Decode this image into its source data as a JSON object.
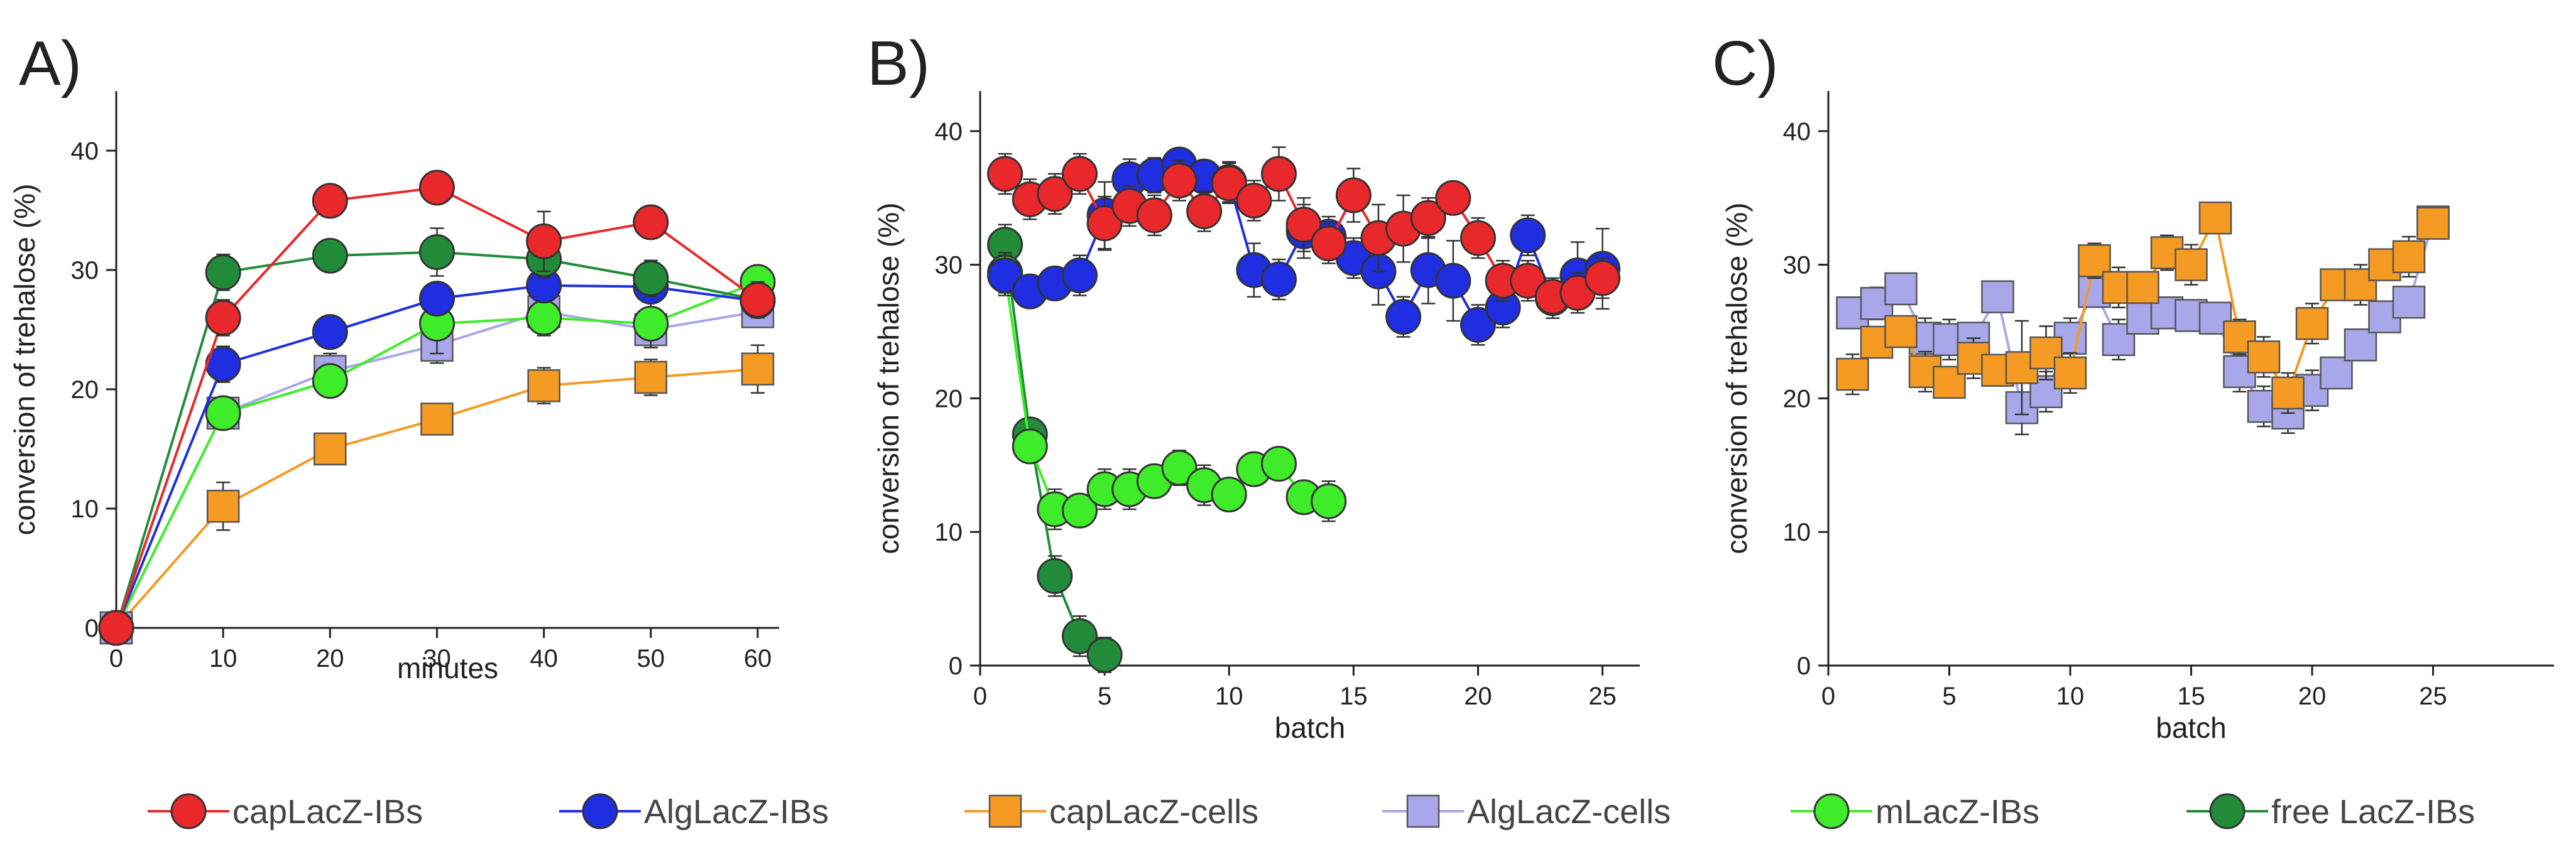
{
  "colors": {
    "capLacZ-IBs": "#e8282b",
    "AlgLacZ-IBs": "#1f2ee0",
    "capLacZ-cells": "#f59a22",
    "AlgLacZ-cells": "#a7a7ea",
    "mLacZ-IBs": "#3fec2a",
    "free LacZ-IBs": "#228b3a"
  },
  "legend": [
    {
      "name": "capLacZ-IBs",
      "marker": "circle"
    },
    {
      "name": "AlgLacZ-IBs",
      "marker": "circle"
    },
    {
      "name": "capLacZ-cells",
      "marker": "square"
    },
    {
      "name": "AlgLacZ-cells",
      "marker": "square"
    },
    {
      "name": "mLacZ-IBs",
      "marker": "circle"
    },
    {
      "name": "free LacZ-IBs",
      "marker": "circle"
    }
  ],
  "chart_data": [
    {
      "type": "line",
      "panel_label": "A)",
      "xlabel": "minutes",
      "ylabel": "conversion of trehalose (%)",
      "xlim": [
        0,
        62
      ],
      "ylim": [
        0,
        45
      ],
      "xticks": [
        0,
        10,
        20,
        30,
        40,
        50,
        60
      ],
      "yticks": [
        0,
        10,
        20,
        30,
        40
      ],
      "series": [
        {
          "name": "capLacZ-cells",
          "marker": "square",
          "x": [
            0,
            10,
            20,
            30,
            40,
            50,
            60
          ],
          "y": [
            0,
            10.2,
            15.0,
            17.5,
            20.3,
            21.0,
            21.7
          ],
          "err": [
            0,
            2.0,
            1.3,
            1.0,
            1.5,
            1.5,
            2.0
          ]
        },
        {
          "name": "AlgLacZ-cells",
          "marker": "square",
          "x": [
            0,
            10,
            20,
            30,
            40,
            50,
            60
          ],
          "y": [
            0,
            18.0,
            21.5,
            23.7,
            26.5,
            25.0,
            26.5
          ],
          "err": [
            0,
            1.0,
            1.5,
            1.5,
            1.8,
            1.5,
            1.0
          ]
        },
        {
          "name": "mLacZ-IBs",
          "marker": "circle",
          "x": [
            0,
            10,
            20,
            30,
            40,
            50,
            60
          ],
          "y": [
            0,
            18.0,
            20.7,
            25.5,
            26.0,
            25.5,
            29.0
          ],
          "err": [
            0,
            1.2,
            1.0,
            2.5,
            1.5,
            2.0,
            1.0
          ]
        },
        {
          "name": "AlgLacZ-IBs",
          "marker": "circle",
          "x": [
            0,
            10,
            20,
            30,
            40,
            50,
            60
          ],
          "y": [
            0,
            22.1,
            24.8,
            27.6,
            28.7,
            28.6,
            27.4
          ],
          "err": [
            0,
            1.5,
            1.2,
            1.3,
            1.2,
            1.3,
            1.0
          ]
        },
        {
          "name": "free LacZ-IBs",
          "marker": "circle",
          "x": [
            0,
            10,
            20,
            30,
            40,
            50,
            60
          ],
          "y": [
            0,
            29.8,
            31.2,
            31.5,
            30.9,
            29.3,
            27.5
          ],
          "err": [
            0,
            1.5,
            1.2,
            2.0,
            1.5,
            1.5,
            1.0
          ]
        },
        {
          "name": "capLacZ-IBs",
          "marker": "circle",
          "x": [
            0,
            10,
            20,
            30,
            40,
            50,
            60
          ],
          "y": [
            0,
            26.0,
            35.8,
            36.9,
            32.4,
            34.0,
            27.5
          ],
          "err": [
            0,
            1.5,
            1.2,
            1.2,
            2.5,
            1.3,
            1.5
          ]
        }
      ]
    },
    {
      "type": "line",
      "panel_label": "B)",
      "xlabel": "batch",
      "ylabel": "conversion of trehalose (%)",
      "xlim": [
        0,
        26.5
      ],
      "ylim": [
        0,
        43
      ],
      "xticks": [
        0,
        5,
        10,
        15,
        20,
        25
      ],
      "yticks": [
        0,
        10,
        20,
        30,
        40
      ],
      "series": [
        {
          "name": "free LacZ-IBs",
          "marker": "circle",
          "x": [
            1,
            2,
            3,
            4,
            5
          ],
          "y": [
            31.5,
            17.3,
            6.7,
            2.2,
            0.8
          ],
          "err": [
            1.5,
            1.0,
            1.5,
            1.5,
            1.3
          ]
        },
        {
          "name": "mLacZ-IBs",
          "marker": "circle",
          "x": [
            1,
            2,
            3,
            4,
            5,
            6,
            7,
            8,
            9,
            10,
            11,
            12,
            13,
            14
          ],
          "y": [
            29.4,
            16.4,
            11.7,
            11.6,
            13.2,
            13.2,
            13.8,
            14.8,
            13.5,
            12.8,
            14.7,
            15.1,
            12.6,
            12.3
          ],
          "err": [
            1.5,
            1.0,
            1.5,
            1.2,
            1.5,
            1.5,
            1.2,
            1.3,
            1.5,
            1.0,
            1.2,
            1.0,
            1.0,
            1.5
          ]
        },
        {
          "name": "AlgLacZ-IBs",
          "marker": "circle",
          "x": [
            1,
            2,
            3,
            4,
            5,
            6,
            7,
            8,
            9,
            10,
            11,
            12,
            13,
            14,
            15,
            16,
            17,
            18,
            19,
            20,
            21,
            22,
            23,
            24,
            25
          ],
          "y": [
            29.2,
            28.0,
            28.6,
            29.2,
            33.7,
            36.4,
            36.7,
            37.5,
            36.6,
            36.2,
            29.6,
            28.9,
            32.5,
            32.1,
            30.5,
            29.5,
            26.1,
            29.6,
            28.8,
            25.5,
            26.8,
            32.2,
            27.5,
            29.2,
            29.7
          ],
          "err": [
            1.5,
            1.0,
            1.2,
            1.5,
            2.5,
            1.5,
            1.3,
            1.2,
            1.2,
            1.5,
            2.0,
            1.5,
            2.0,
            1.5,
            1.5,
            2.5,
            1.5,
            2.5,
            3.0,
            1.5,
            1.5,
            1.5,
            1.5,
            2.5,
            3.0
          ]
        },
        {
          "name": "capLacZ-IBs",
          "marker": "circle",
          "x": [
            1,
            2,
            3,
            4,
            5,
            6,
            7,
            8,
            9,
            10,
            11,
            12,
            13,
            14,
            15,
            16,
            17,
            18,
            19,
            20,
            21,
            22,
            23,
            24,
            25
          ],
          "y": [
            36.8,
            34.9,
            35.3,
            36.8,
            33.1,
            34.4,
            33.7,
            36.3,
            34.0,
            36.1,
            34.8,
            36.8,
            33.0,
            31.6,
            35.2,
            32.0,
            32.7,
            33.5,
            35.0,
            32.0,
            28.8,
            28.8,
            27.6,
            27.9,
            29.0
          ],
          "err": [
            1.5,
            1.5,
            1.5,
            1.5,
            2.0,
            1.5,
            1.5,
            1.5,
            1.5,
            1.5,
            1.5,
            2.0,
            2.0,
            1.5,
            2.0,
            2.5,
            2.5,
            1.5,
            1.0,
            1.5,
            1.5,
            1.5,
            1.0,
            1.5,
            1.5
          ]
        }
      ]
    },
    {
      "type": "line",
      "panel_label": "C)",
      "xlabel": "batch",
      "ylabel": "conversion of trehalose (%)",
      "xlim": [
        0,
        30
      ],
      "ylim": [
        0,
        43
      ],
      "xticks": [
        0,
        5,
        10,
        15,
        20,
        25
      ],
      "yticks": [
        0,
        10,
        20,
        30,
        40
      ],
      "series": [
        {
          "name": "AlgLacZ-cells",
          "marker": "square",
          "x": [
            1,
            2,
            3,
            4,
            5,
            6,
            7,
            8,
            9,
            10,
            11,
            12,
            13,
            14,
            15,
            16,
            17,
            18,
            19,
            20,
            21,
            22,
            23,
            24,
            25
          ],
          "y": [
            26.4,
            27.1,
            28.2,
            24.5,
            24.4,
            24.5,
            27.6,
            19.3,
            20.5,
            24.5,
            28.0,
            24.4,
            26.0,
            26.4,
            26.2,
            26.0,
            22.0,
            19.4,
            18.9,
            20.6,
            21.9,
            24.0,
            26.1,
            27.2,
            33.2
          ],
          "err": [
            1.0,
            1.2,
            1.0,
            1.5,
            1.5,
            1.0,
            1.0,
            2.0,
            1.5,
            1.5,
            1.0,
            1.5,
            1.0,
            1.0,
            1.0,
            1.0,
            1.5,
            1.5,
            1.5,
            1.5,
            1.0,
            1.0,
            1.0,
            1.0,
            1.0
          ]
        },
        {
          "name": "capLacZ-cells",
          "marker": "square",
          "x": [
            1,
            2,
            3,
            4,
            5,
            6,
            7,
            8,
            9,
            10,
            11,
            12,
            13,
            14,
            15,
            16,
            17,
            18,
            19,
            20,
            21,
            22,
            23,
            24,
            25
          ],
          "y": [
            21.8,
            24.2,
            25.0,
            22.0,
            21.2,
            23.0,
            22.1,
            22.3,
            23.4,
            21.9,
            30.3,
            28.3,
            28.3,
            30.9,
            30.0,
            33.5,
            24.6,
            23.1,
            20.4,
            25.6,
            28.5,
            28.5,
            30.0,
            30.6,
            33.1
          ],
          "err": [
            1.5,
            1.0,
            1.0,
            1.5,
            1.0,
            1.5,
            1.0,
            3.5,
            2.0,
            1.5,
            1.3,
            1.5,
            1.0,
            1.3,
            1.5,
            1.0,
            1.3,
            1.5,
            1.5,
            1.5,
            1.0,
            1.5,
            1.0,
            1.5,
            1.0
          ]
        }
      ]
    }
  ]
}
